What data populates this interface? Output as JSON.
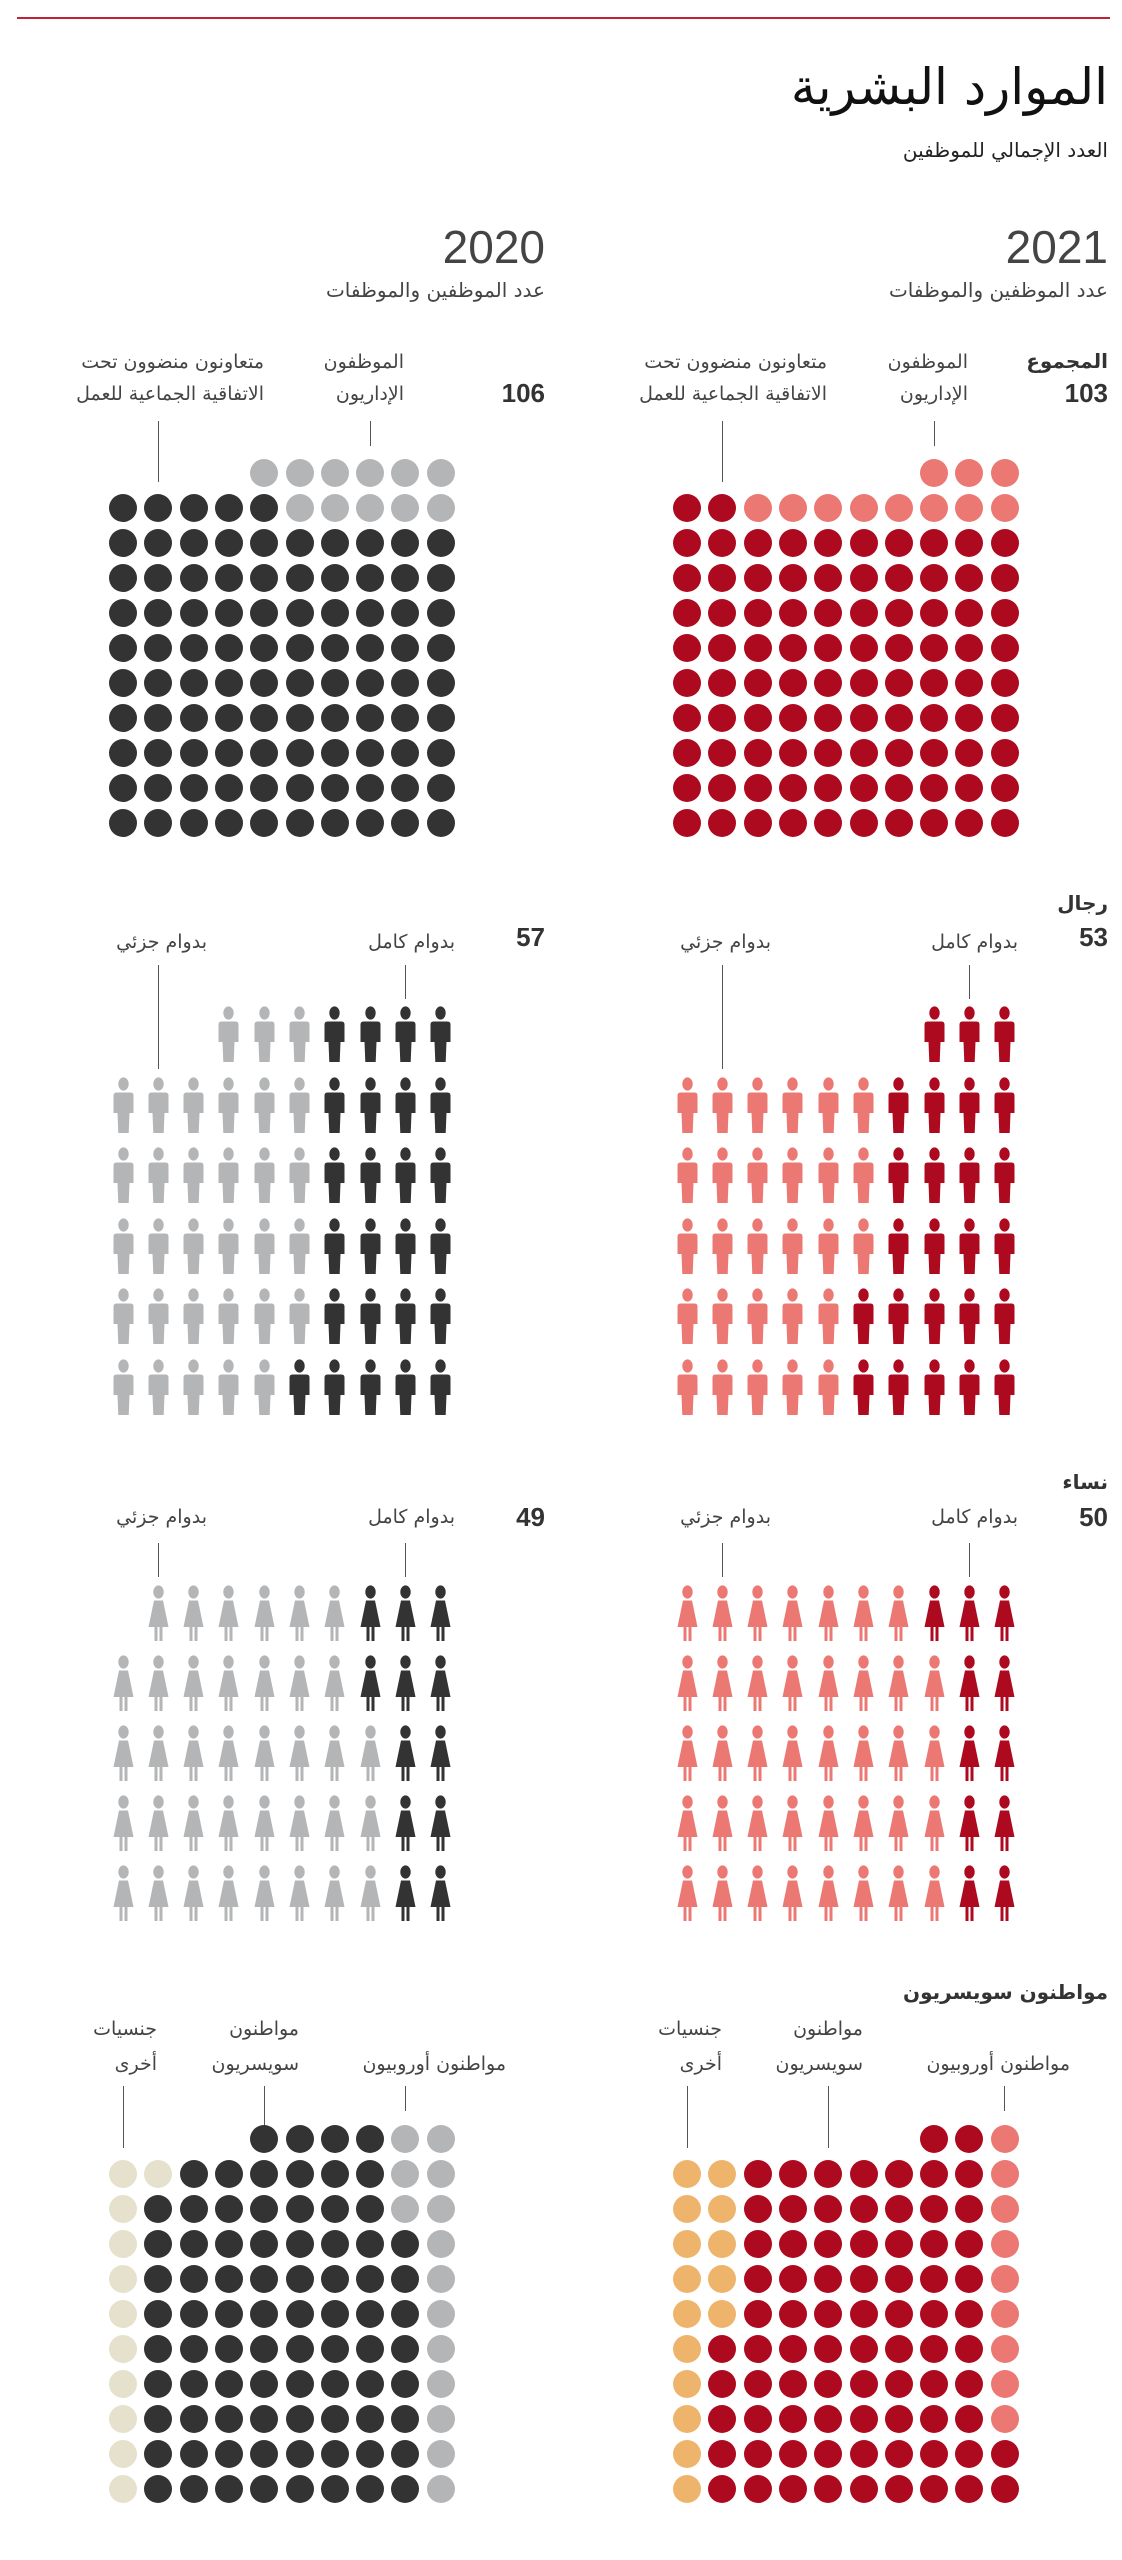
{
  "header": {
    "title": "الموارد البشرية",
    "subtitle": "العدد الإجمالي للموظفين"
  },
  "years": [
    {
      "year": "2021",
      "caption": "عدد الموظفين والموظفات"
    },
    {
      "year": "2020",
      "caption": "عدد الموظفين والموظفات"
    }
  ],
  "sections": [
    {
      "heading": "المجموع"
    },
    {
      "heading": "رجال"
    },
    {
      "heading": "نساء"
    },
    {
      "heading": "مواطنون سويسريون"
    }
  ],
  "colors": {
    "dark": "#333333",
    "gray": "#b4b5b7",
    "red": "#ad0a1f",
    "pink": "#ec7873",
    "orange": "#efb46c",
    "beige": "#e5e1cd"
  },
  "chart_data": [
    {
      "type": "waffle",
      "section": 0,
      "year": "2021",
      "icon": "dot",
      "total": "103",
      "categories": [
        {
          "label": [
            "الموظفون",
            "الإداريون"
          ],
          "value": 11,
          "color": "#ec7873"
        },
        {
          "label": [
            "متعاونون منضوون تحت",
            "الاتفاقية الجماعية للعمل"
          ],
          "value": 92,
          "color": "#ad0a1f"
        }
      ]
    },
    {
      "type": "waffle",
      "section": 0,
      "year": "2020",
      "icon": "dot",
      "total": "106",
      "categories": [
        {
          "label": [
            "الموظفون",
            "الإداريون"
          ],
          "value": 11,
          "color": "#b4b5b7"
        },
        {
          "label": [
            "متعاونون منضوون تحت",
            "الاتفاقية الجماعية للعمل"
          ],
          "value": 95,
          "color": "#333333"
        }
      ]
    },
    {
      "type": "waffle",
      "section": 1,
      "year": "2021",
      "icon": "man",
      "total": "53",
      "categories": [
        {
          "label": [
            "بدوام كامل"
          ],
          "value": 25,
          "color": "#ad0a1f"
        },
        {
          "label": [
            "بدوام جزئي"
          ],
          "value": 28,
          "color": "#ec7873"
        }
      ]
    },
    {
      "type": "waffle",
      "section": 1,
      "year": "2020",
      "icon": "man",
      "total": "57",
      "categories": [
        {
          "label": [
            "بدوام كامل"
          ],
          "value": 25,
          "color": "#333333"
        },
        {
          "label": [
            "بدوام جزئي"
          ],
          "value": 32,
          "color": "#b4b5b7"
        }
      ]
    },
    {
      "type": "waffle",
      "section": 2,
      "year": "2021",
      "icon": "woman",
      "total": "50",
      "categories": [
        {
          "label": [
            "بدوام كامل"
          ],
          "value": 11,
          "color": "#ad0a1f"
        },
        {
          "label": [
            "بدوام جزئي"
          ],
          "value": 39,
          "color": "#ec7873"
        }
      ]
    },
    {
      "type": "waffle",
      "section": 2,
      "year": "2020",
      "icon": "woman",
      "total": "49",
      "categories": [
        {
          "label": [
            "بدوام كامل"
          ],
          "value": 12,
          "color": "#333333"
        },
        {
          "label": [
            "بدوام جزئي"
          ],
          "value": 37,
          "color": "#b4b5b7"
        }
      ]
    },
    {
      "type": "waffle",
      "section": 3,
      "year": "2021",
      "icon": "dot",
      "categories": [
        {
          "label": [
            "مواطنون أوروبيون"
          ],
          "value": 9,
          "color": "#ec7873"
        },
        {
          "label": [
            "مواطنون",
            "سويسريون"
          ],
          "value": 79,
          "color": "#ad0a1f"
        },
        {
          "label": [
            "جنسيات",
            "أخرى"
          ],
          "value": 15,
          "color": "#efb46c"
        }
      ]
    },
    {
      "type": "waffle",
      "section": 3,
      "year": "2020",
      "icon": "dot",
      "categories": [
        {
          "label": [
            "مواطنون أوروبيون"
          ],
          "value": 14,
          "color": "#b4b5b7"
        },
        {
          "label": [
            "مواطنون",
            "سويسريون"
          ],
          "value": 81,
          "color": "#333333"
        },
        {
          "label": [
            "جنسيات",
            "أخرى"
          ],
          "value": 11,
          "color": "#e5e1cd"
        }
      ]
    }
  ]
}
